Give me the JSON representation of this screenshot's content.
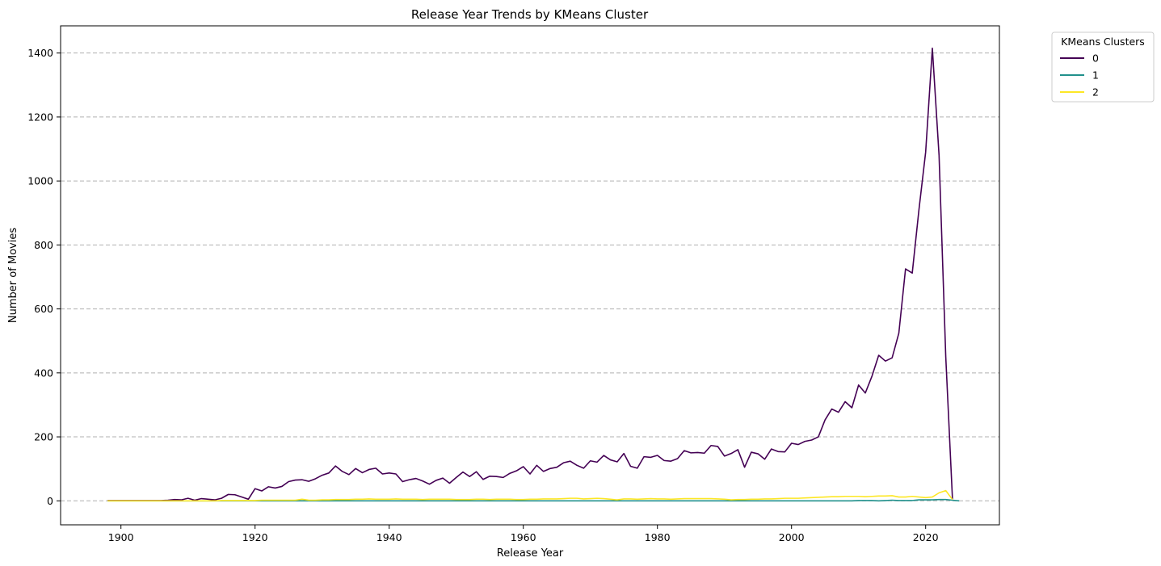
{
  "chart_data": {
    "type": "line",
    "title": "Release Year Trends by KMeans Cluster",
    "xlabel": "Release Year",
    "ylabel": "Number of Movies",
    "xlim": [
      1891,
      2031
    ],
    "ylim": [
      -75,
      1485
    ],
    "xticks": [
      1900,
      1920,
      1940,
      1960,
      1980,
      2000,
      2020
    ],
    "yticks": [
      0,
      200,
      400,
      600,
      800,
      1000,
      1200,
      1400
    ],
    "grid": "y, dashed",
    "legend": {
      "title": "KMeans Clusters",
      "placement": "outside top-right"
    },
    "x_start": 1898,
    "series": [
      {
        "name": "0",
        "color": "#440154",
        "values": [
          1,
          1,
          1,
          1,
          1,
          1,
          1,
          1,
          1,
          2,
          4,
          3,
          8,
          2,
          7,
          5,
          3,
          8,
          20,
          19,
          12,
          5,
          38,
          31,
          44,
          40,
          45,
          60,
          65,
          66,
          61,
          69,
          80,
          87,
          109,
          92,
          82,
          101,
          88,
          98,
          102,
          84,
          87,
          84,
          60,
          66,
          70,
          62,
          52,
          64,
          71,
          55,
          73,
          90,
          76,
          91,
          67,
          77,
          76,
          73,
          86,
          94,
          107,
          84,
          111,
          92,
          101,
          105,
          119,
          124,
          111,
          102,
          125,
          121,
          142,
          128,
          122,
          148,
          108,
          102,
          138,
          136,
          142,
          126,
          124,
          132,
          157,
          150,
          151,
          149,
          173,
          170,
          140,
          148,
          160,
          105,
          152,
          147,
          130,
          162,
          154,
          153,
          180,
          176,
          186,
          190,
          200,
          253,
          287,
          277,
          310,
          291,
          362,
          337,
          390,
          455,
          437,
          447,
          524,
          725,
          712,
          910,
          1090,
          1415,
          1080,
          450,
          5
        ]
      },
      {
        "name": "1",
        "color": "#21918c",
        "values": [
          0,
          0,
          0,
          0,
          0,
          0,
          0,
          0,
          0,
          0,
          0,
          0,
          0,
          0,
          0,
          0,
          0,
          0,
          0,
          0,
          0,
          0,
          0,
          0,
          0,
          0,
          0,
          0,
          0,
          0,
          0,
          0,
          0,
          0,
          0,
          0,
          0,
          0,
          0,
          0,
          0,
          0,
          0,
          0,
          0,
          0,
          0,
          0,
          0,
          0,
          0,
          0,
          0,
          0,
          0,
          0,
          0,
          0,
          0,
          0,
          0,
          0,
          0,
          0,
          0,
          0,
          0,
          0,
          0,
          0,
          0,
          0,
          0,
          0,
          0,
          0,
          0,
          0,
          0,
          0,
          0,
          0,
          0,
          0,
          0,
          0,
          0,
          0,
          0,
          0,
          0,
          0,
          0,
          0,
          0,
          0,
          0,
          0,
          0,
          0,
          0,
          0,
          0,
          0,
          0,
          0,
          0,
          0,
          0,
          0,
          0,
          0,
          1,
          1,
          1,
          0,
          1,
          2,
          1,
          1,
          1,
          3,
          3,
          3,
          4,
          4,
          2,
          0
        ]
      },
      {
        "name": "2",
        "color": "#fde725",
        "values": [
          0,
          0,
          0,
          0,
          0,
          0,
          0,
          0,
          0,
          0,
          0,
          0,
          0,
          0,
          0,
          0,
          0,
          1,
          1,
          1,
          1,
          1,
          1,
          2,
          2,
          2,
          2,
          2,
          2,
          5,
          2,
          2,
          3,
          3,
          4,
          4,
          4,
          5,
          5,
          6,
          5,
          5,
          5,
          6,
          5,
          5,
          5,
          4,
          5,
          5,
          5,
          5,
          4,
          4,
          4,
          5,
          5,
          4,
          5,
          5,
          5,
          4,
          4,
          5,
          5,
          6,
          6,
          6,
          7,
          8,
          8,
          6,
          7,
          8,
          7,
          5,
          3,
          6,
          6,
          5,
          6,
          7,
          6,
          6,
          5,
          6,
          7,
          7,
          7,
          7,
          7,
          6,
          5,
          3,
          4,
          4,
          5,
          5,
          6,
          6,
          7,
          8,
          8,
          8,
          9,
          10,
          11,
          12,
          13,
          13,
          14,
          14,
          14,
          13,
          14,
          15,
          15,
          16,
          12,
          12,
          14,
          12,
          10,
          12,
          25,
          32,
          4
        ]
      }
    ]
  }
}
